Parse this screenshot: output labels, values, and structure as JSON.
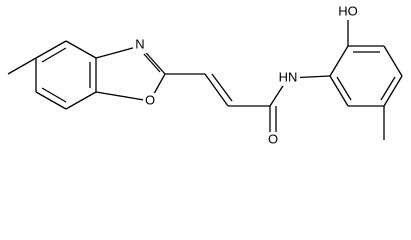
{
  "atoms": [
    {
      "label": "N"
    },
    {
      "label": "O"
    },
    {
      "label": "O"
    },
    {
      "label": "HN"
    },
    {
      "label": "HO"
    }
  ]
}
